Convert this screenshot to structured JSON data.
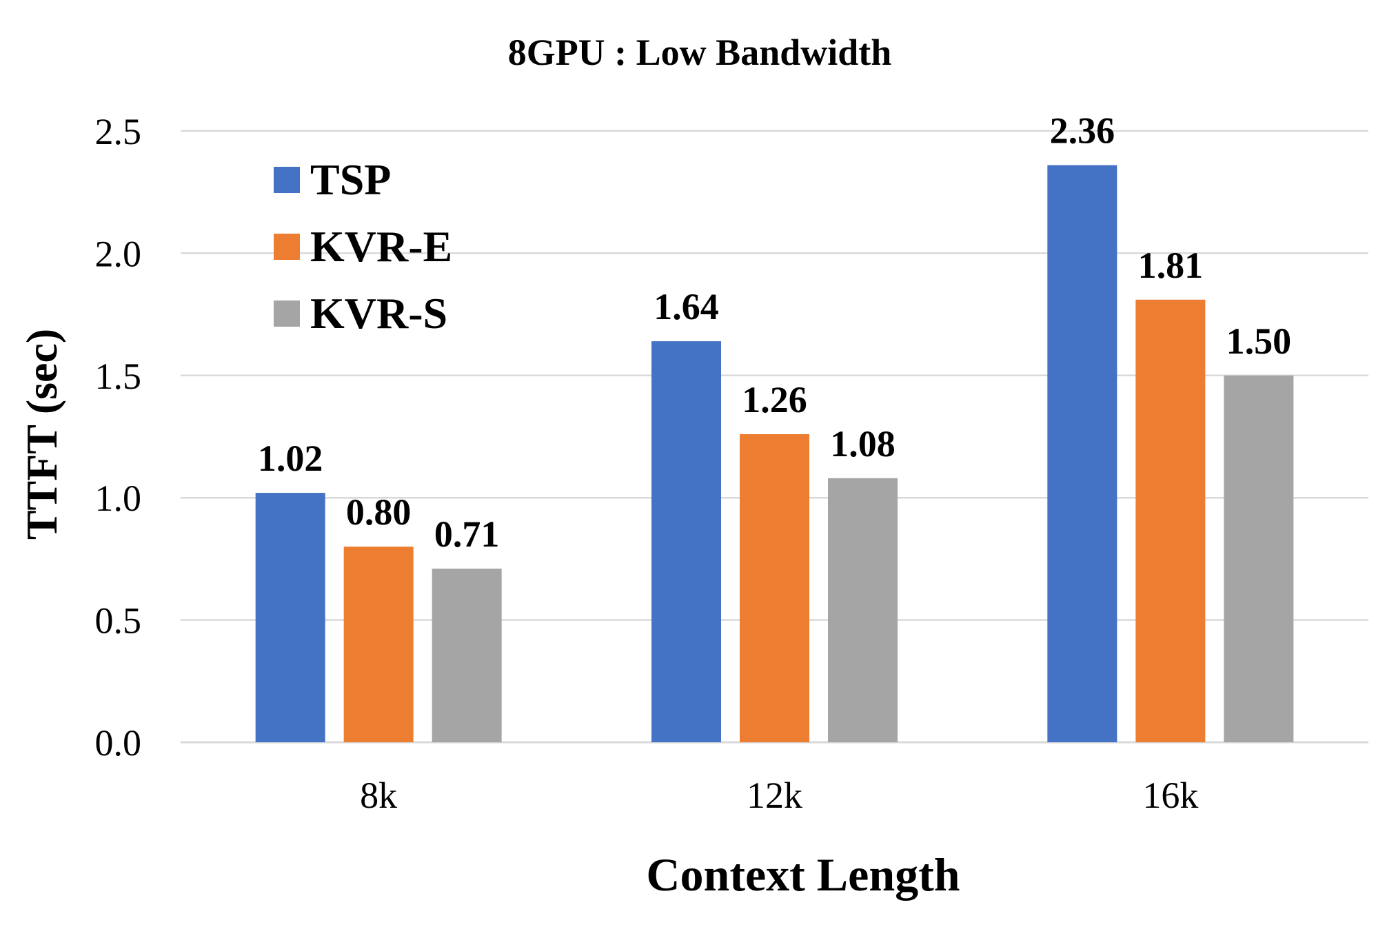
{
  "chart_data": {
    "type": "bar",
    "title": "8GPU : Low Bandwidth",
    "xlabel": "Context Length",
    "ylabel": "TTFT (sec)",
    "categories": [
      "8k",
      "12k",
      "16k"
    ],
    "series": [
      {
        "name": "TSP",
        "color": "#4472C4",
        "values": [
          1.02,
          1.64,
          2.36
        ],
        "labels": [
          "1.02",
          "1.64",
          "2.36"
        ]
      },
      {
        "name": "KVR-E",
        "color": "#ED7D31",
        "values": [
          0.8,
          1.26,
          1.81
        ],
        "labels": [
          "0.80",
          "1.26",
          "1.81"
        ]
      },
      {
        "name": "KVR-S",
        "color": "#A5A5A5",
        "values": [
          0.71,
          1.08,
          1.5
        ],
        "labels": [
          "0.71",
          "1.08",
          "1.50"
        ]
      }
    ],
    "ylim": [
      0,
      2.5
    ],
    "yticks": [
      "0.0",
      "0.5",
      "1.0",
      "1.5",
      "2.0",
      "2.5"
    ],
    "grid": true,
    "gridline_color": "#D9D9D9",
    "legend_position": "top-left inside"
  }
}
